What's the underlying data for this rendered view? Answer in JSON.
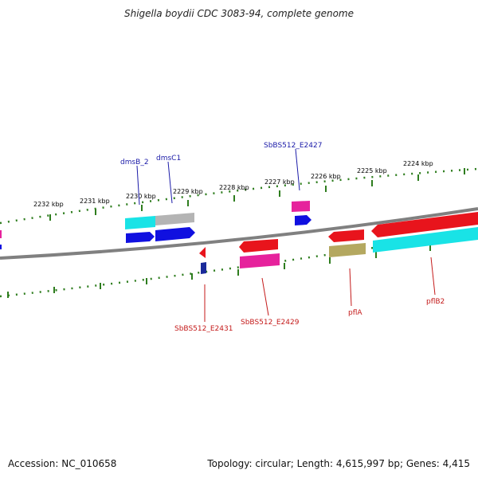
{
  "title": "Shigella boydii CDC 3083-94, complete genome",
  "footer": {
    "accession": "Accession: NC_010658",
    "summary": "Topology: circular; Length: 4,615,997 bp; Genes: 4,415"
  },
  "scale": {
    "upper_ticks": [
      "2232 kbp",
      "2231 kbp",
      "2230 kbp",
      "2229 kbp",
      "2228 kbp",
      "2227 kbp",
      "2226 kbp",
      "2225 kbp",
      "2224 kbp"
    ]
  },
  "genes": {
    "upper_labels": [
      "dmsB_2",
      "dmsC1",
      "SbBS512_E2427"
    ],
    "lower_labels": [
      "SbBS512_E2431",
      "SbBS512_E2429",
      "pflA",
      "pflB2"
    ]
  },
  "colors": {
    "backbone": "#808080",
    "tick": "#2e7d1e",
    "feature_red": "#e8141c",
    "feature_blue": "#1010e0",
    "feature_cyan": "#19e3e6",
    "feature_pink": "#e6229c",
    "feature_gray": "#b4b4b4",
    "feature_olive": "#b4a860",
    "feature_navy": "#1a2a9a"
  }
}
